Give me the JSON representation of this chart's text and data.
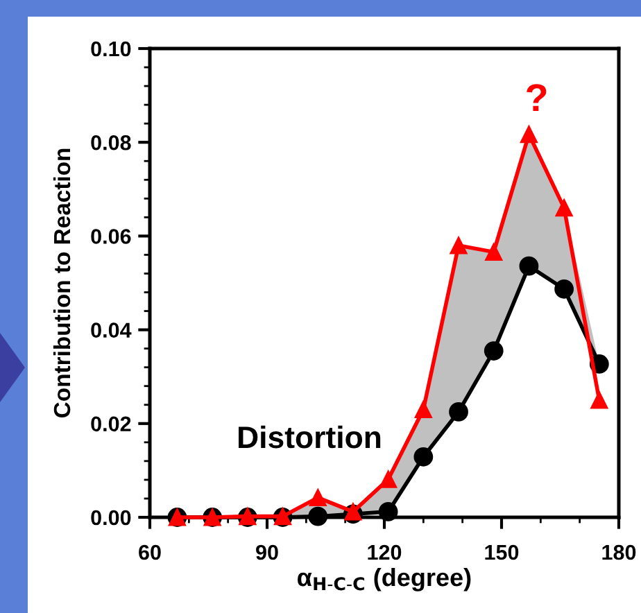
{
  "chart_data": {
    "type": "line",
    "xlabel": "α$_{H-C-C}$ (degree)",
    "ylabel": "Contribution to Reaction",
    "x": [
      67,
      76,
      85,
      94,
      103,
      112,
      121,
      130,
      139,
      148,
      157,
      166,
      175
    ],
    "series": [
      {
        "color": "#ff0000",
        "marker": "triangle",
        "values": [
          0,
          0,
          0.0002,
          0.0002,
          0.0042,
          0.0012,
          0.0081,
          0.023,
          0.058,
          0.0566,
          0.0817,
          0.066,
          0.025
        ],
        "lower": [
          0,
          0,
          0,
          0,
          0.0002,
          0.0007,
          0.0012,
          0.0129,
          0.0225,
          0.0355,
          0.0536,
          0.0487,
          0.0327
        ],
        "upper": [
          0,
          0,
          0.0002,
          0.0002,
          0.0042,
          0.0012,
          0.0081,
          0.023,
          0.058,
          0.0566,
          0.0817,
          0.066,
          0.0327
        ]
      },
      {
        "color": "#000000",
        "marker": "circle",
        "values": [
          0,
          0,
          0,
          0,
          0.0002,
          0.0007,
          0.0012,
          0.0129,
          0.0225,
          0.0355,
          0.0536,
          0.0487,
          0.0327
        ]
      }
    ],
    "annotations": [
      "Distortion",
      {
        "text": "?",
        "x": 157,
        "y": 0.0817
      }
    ],
    "xlim": [
      60,
      180
    ],
    "xticks": [
      60,
      90,
      120,
      150,
      180
    ],
    "ylim": [
      0,
      0.1
    ],
    "yticks": [
      {
        "value": 0,
        "label": "0.00"
      },
      {
        "value": 0.02,
        "label": "0.02"
      },
      {
        "value": 0.04,
        "label": "0.04"
      },
      {
        "value": 0.06,
        "label": "0.06"
      },
      {
        "value": 0.08,
        "label": "0.08"
      },
      {
        "value": 0.1,
        "label": "0.10"
      }
    ],
    "grid": false,
    "legend": false,
    "line_style": "solid"
  }
}
